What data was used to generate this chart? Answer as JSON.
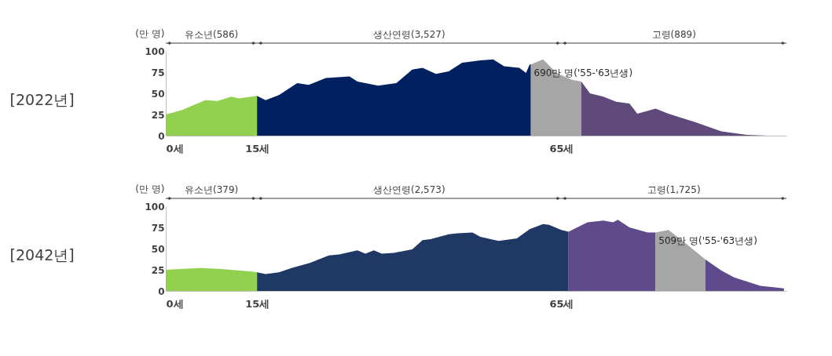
{
  "chart_data": [
    {
      "type": "area",
      "title": "[2022년]",
      "ylabel": "(만 명)",
      "xlim": [
        0,
        102
      ],
      "ylim": [
        0,
        100
      ],
      "yticks": [
        0,
        25,
        50,
        75,
        100
      ],
      "grid": false,
      "xticks": [
        {
          "value": 0,
          "label": "0세"
        },
        {
          "value": 15,
          "label": "15세"
        },
        {
          "value": 65,
          "label": "65세"
        }
      ],
      "annotations": [
        "유소년(586)",
        "생산연령(3,527)",
        "고령(889)",
        "690만 명('55-'63년생)"
      ],
      "series": [
        {
          "color": "#92d050",
          "x": [
            0,
            2.6,
            6.5,
            8.5,
            10.8,
            12,
            15
          ],
          "values": [
            25,
            30,
            42,
            41,
            46,
            44,
            47
          ]
        },
        {
          "color": "#002060",
          "x": [
            15,
            16.4,
            18.6,
            21.6,
            23.5,
            26.3,
            30.2,
            31.5,
            34.9,
            37.9,
            40.5,
            42.2,
            44.4,
            46.5,
            48.7,
            51.7,
            53.8,
            55.6,
            58.1,
            59.2,
            59.8,
            60
          ],
          "values": [
            47,
            42,
            48,
            62,
            60,
            68,
            70,
            64,
            59,
            62,
            78,
            80,
            73,
            76,
            86,
            89,
            90,
            82,
            80,
            74,
            84,
            84
          ]
        },
        {
          "color": "#a6a6a6",
          "x": [
            60,
            62,
            64.2,
            66.7,
            68.3
          ],
          "values": [
            84,
            90,
            74,
            66,
            64
          ]
        },
        {
          "color": "#604a7b",
          "x": [
            68.3,
            69.7,
            71.9,
            74,
            76.2,
            77.5,
            80.5,
            82.6,
            87,
            91.3,
            95.5,
            99,
            102
          ],
          "values": [
            64,
            50,
            46,
            40,
            38,
            26,
            32,
            26,
            16,
            5,
            1,
            0,
            0
          ]
        }
      ]
    },
    {
      "type": "area",
      "title": "[2042년]",
      "ylabel": "(만 명)",
      "xlim": [
        0,
        102
      ],
      "ylim": [
        0,
        100
      ],
      "yticks": [
        0,
        25,
        50,
        75,
        100
      ],
      "grid": false,
      "xticks": [
        {
          "value": 0,
          "label": "0세"
        },
        {
          "value": 15,
          "label": "15세"
        },
        {
          "value": 65,
          "label": "65세"
        }
      ],
      "annotations": [
        "유소년(379)",
        "생산연령(2,573)",
        "고령(1,725)",
        "509만 명('55-'63년생)"
      ],
      "series": [
        {
          "color": "#92d050",
          "x": [
            0,
            5.7,
            9,
            14.1,
            15
          ],
          "values": [
            25,
            27,
            26,
            23,
            22
          ]
        },
        {
          "color": "#1f3864",
          "x": [
            15,
            16.4,
            18.6,
            20.7,
            23.7,
            26.8,
            28.5,
            31.5,
            32.8,
            34.2,
            35.5,
            37.5,
            40.5,
            42.2,
            43.5,
            46.5,
            48,
            50.4,
            51.7,
            54.7,
            57.7,
            59.8,
            62,
            63,
            65,
            66.2
          ],
          "values": [
            22,
            20,
            22,
            27,
            33,
            42,
            43,
            48,
            44,
            48,
            44,
            45,
            49,
            60,
            61,
            67,
            68,
            69,
            64,
            59,
            62,
            73,
            79,
            78,
            72,
            70
          ]
        },
        {
          "color": "#5f4b8b",
          "x": [
            66.2,
            69.3,
            71.9,
            73.5,
            74.3,
            76.2,
            79.2,
            80.5
          ],
          "values": [
            70,
            81,
            83,
            81,
            84,
            75,
            69,
            69
          ]
        },
        {
          "color": "#a6a6a6",
          "x": [
            80.5,
            82.6,
            84.8,
            88.7
          ],
          "values": [
            69,
            72,
            60,
            37
          ]
        },
        {
          "color": "#5f4b8b",
          "x": [
            88.7,
            91.3,
            93.4,
            97.7,
            101.6
          ],
          "values": [
            37,
            24,
            16,
            6,
            3
          ]
        }
      ]
    }
  ]
}
